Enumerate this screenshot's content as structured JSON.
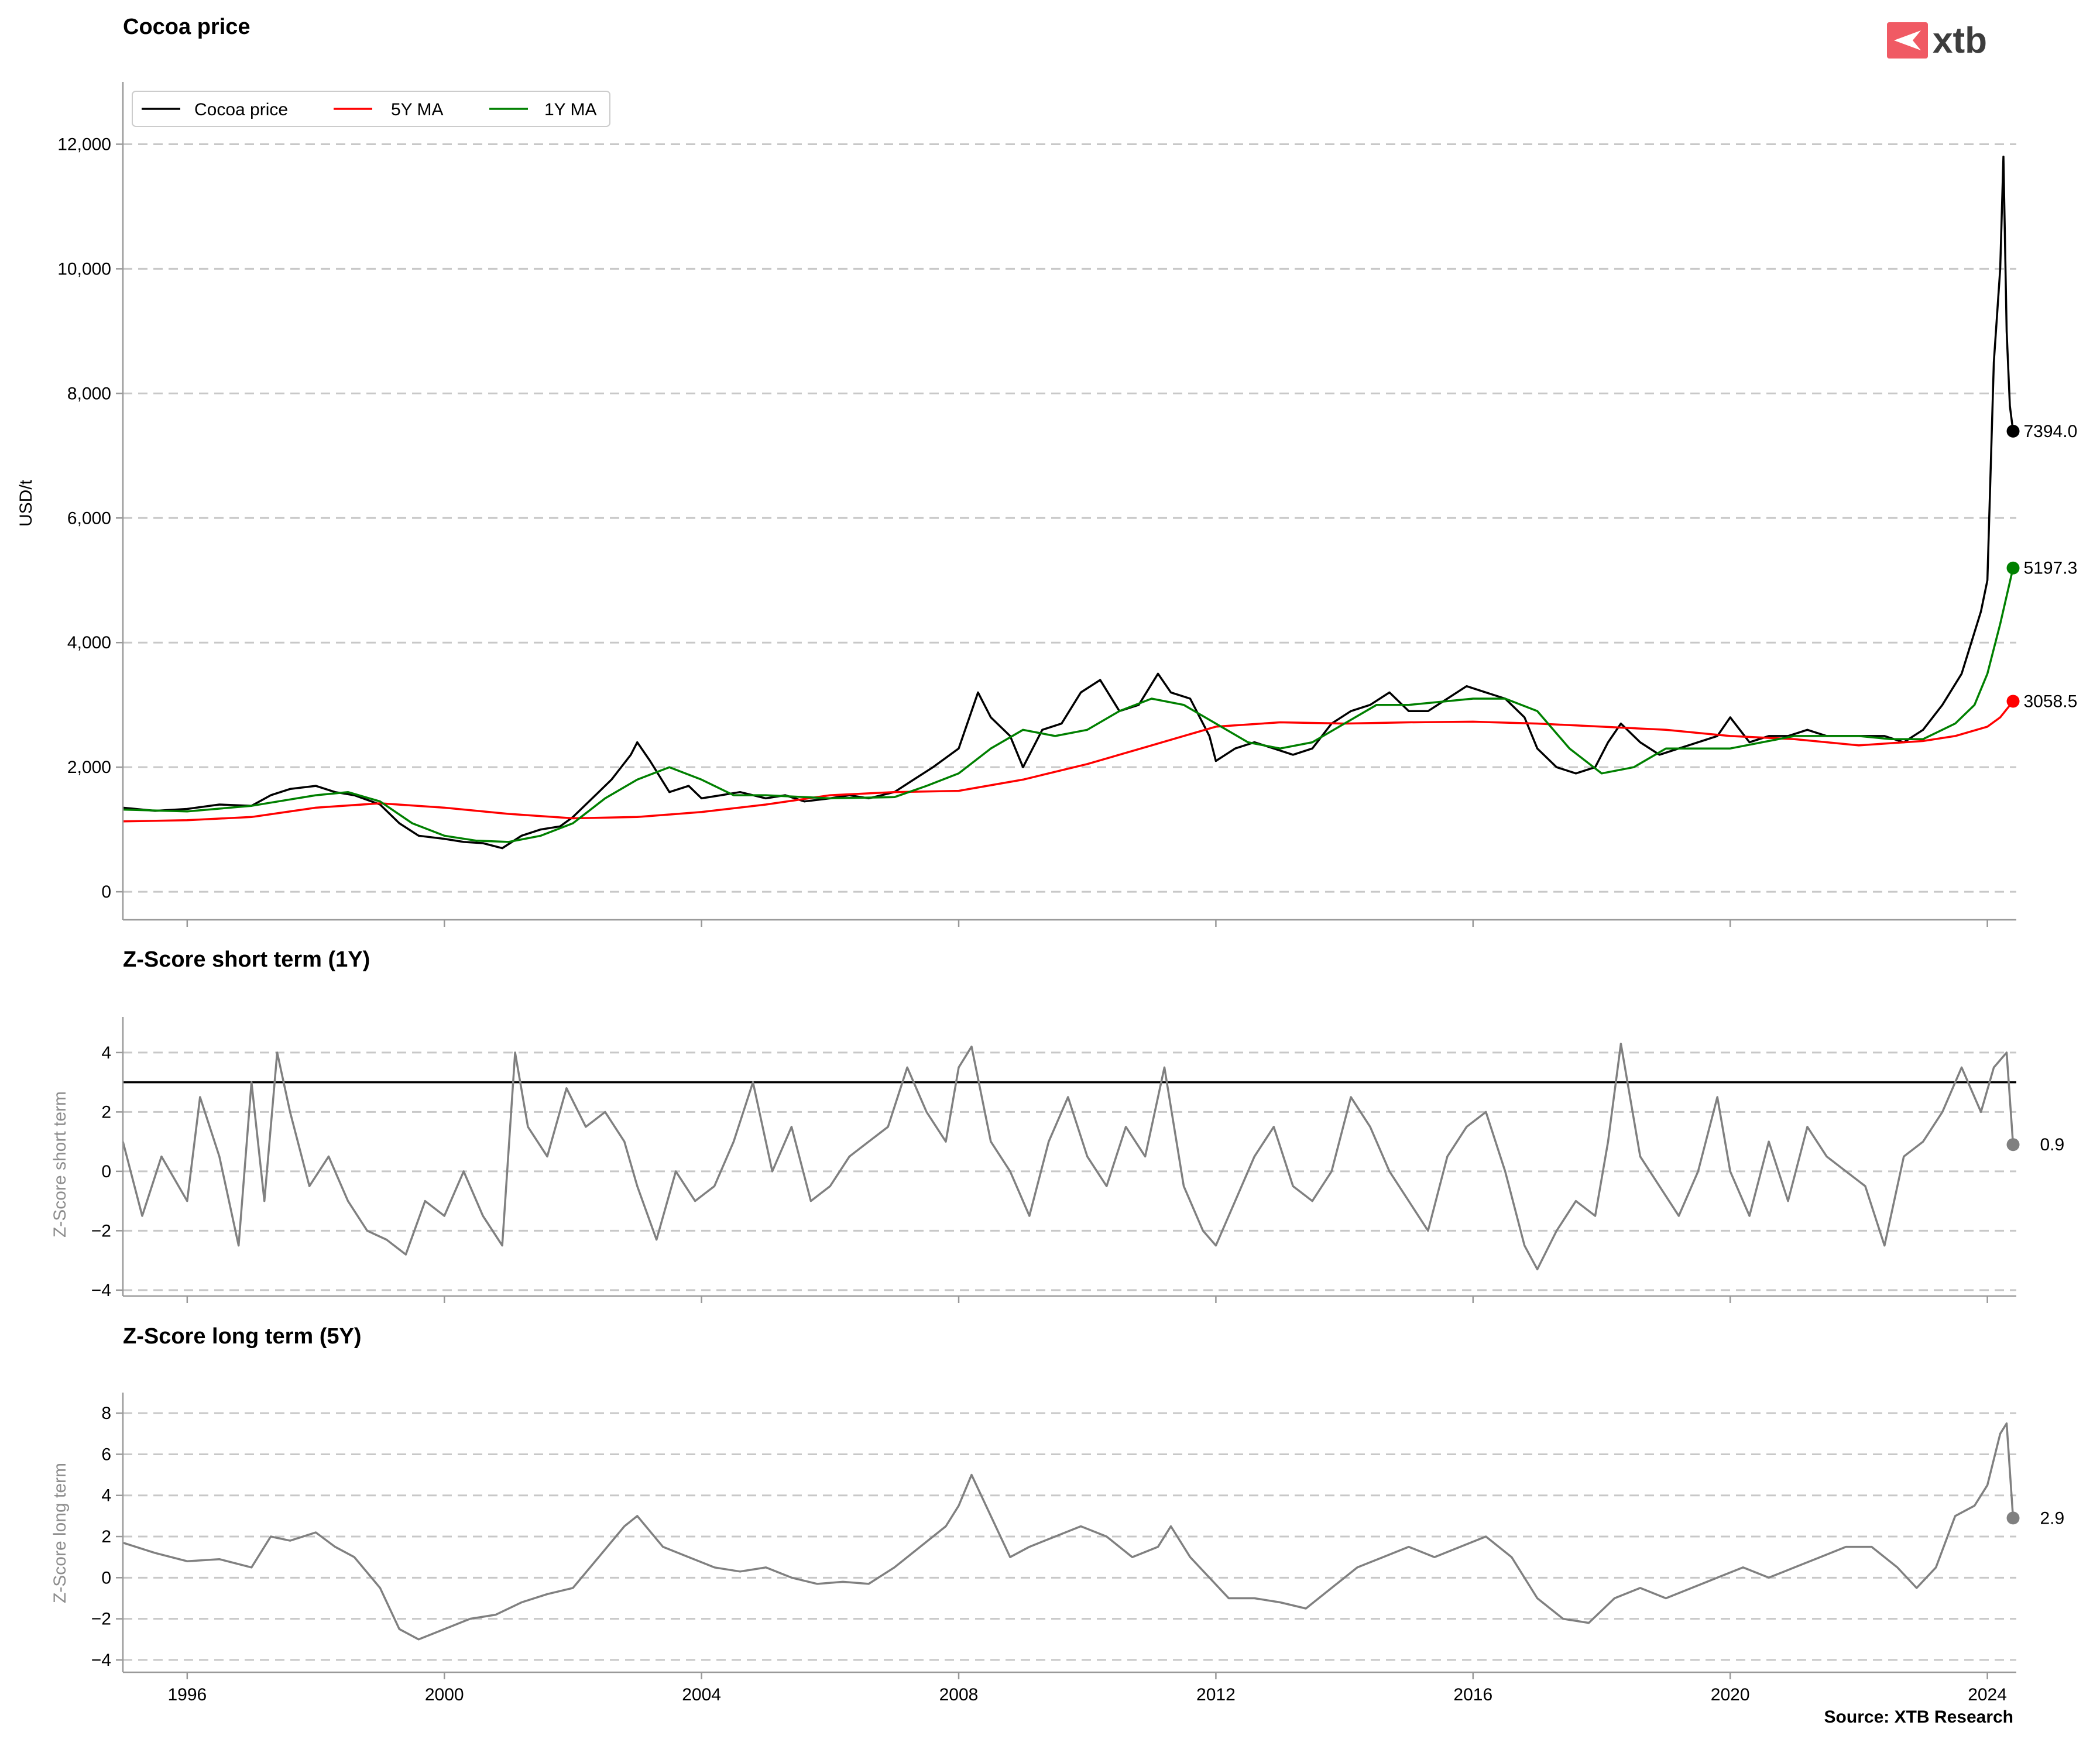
{
  "brand": {
    "logo_text": "xtb",
    "logo_color": "#f05a64"
  },
  "source": "Source: XTB Research",
  "x_ticks": [
    "1996",
    "2000",
    "2004",
    "2008",
    "2012",
    "2016",
    "2020",
    "2024"
  ],
  "chart_data": [
    {
      "type": "line",
      "title": "Cocoa price",
      "ylabel": "USD/t",
      "xlim": [
        1995.0,
        2024.45
      ],
      "ylim": [
        -450,
        13000
      ],
      "y_ticks": [
        0,
        2000,
        4000,
        6000,
        8000,
        10000,
        12000
      ],
      "y_tick_labels": [
        "0",
        "2,000",
        "4,000",
        "6,000",
        "8,000",
        "10,000",
        "12,000"
      ],
      "grid": true,
      "legend_position": "top-left",
      "series": [
        {
          "name": "Cocoa price",
          "color": "#000000",
          "x": [
            1995.0,
            1995.5,
            1996.0,
            1996.5,
            1997.0,
            1997.3,
            1997.6,
            1998.0,
            1998.3,
            1998.6,
            1999.0,
            1999.3,
            1999.6,
            2000.0,
            2000.3,
            2000.6,
            2000.9,
            2001.2,
            2001.5,
            2001.8,
            2002.0,
            2002.3,
            2002.6,
            2002.9,
            2003.0,
            2003.2,
            2003.5,
            2003.8,
            2004.0,
            2004.3,
            2004.6,
            2005.0,
            2005.3,
            2005.6,
            2006.0,
            2006.3,
            2006.6,
            2007.0,
            2007.3,
            2007.6,
            2008.0,
            2008.3,
            2008.5,
            2008.8,
            2009.0,
            2009.3,
            2009.6,
            2009.9,
            2010.2,
            2010.5,
            2010.8,
            2011.1,
            2011.3,
            2011.6,
            2011.9,
            2012.0,
            2012.3,
            2012.6,
            2012.9,
            2013.2,
            2013.5,
            2013.8,
            2014.1,
            2014.4,
            2014.7,
            2015.0,
            2015.3,
            2015.6,
            2015.9,
            2016.2,
            2016.5,
            2016.8,
            2017.0,
            2017.3,
            2017.6,
            2017.9,
            2018.1,
            2018.3,
            2018.6,
            2018.9,
            2019.2,
            2019.5,
            2019.8,
            2020.0,
            2020.3,
            2020.6,
            2020.9,
            2021.2,
            2021.5,
            2021.8,
            2022.1,
            2022.4,
            2022.7,
            2023.0,
            2023.3,
            2023.6,
            2023.9,
            2024.0,
            2024.1,
            2024.2,
            2024.25,
            2024.3,
            2024.35,
            2024.4
          ],
          "values": [
            1350,
            1300,
            1330,
            1400,
            1380,
            1550,
            1650,
            1700,
            1600,
            1550,
            1400,
            1100,
            900,
            850,
            800,
            780,
            700,
            900,
            1000,
            1050,
            1200,
            1500,
            1800,
            2200,
            2400,
            2100,
            1600,
            1700,
            1500,
            1550,
            1600,
            1500,
            1550,
            1450,
            1500,
            1550,
            1500,
            1600,
            1800,
            2000,
            2300,
            3200,
            2800,
            2500,
            2000,
            2600,
            2700,
            3200,
            3400,
            2900,
            3000,
            3500,
            3200,
            3100,
            2500,
            2100,
            2300,
            2400,
            2300,
            2200,
            2300,
            2700,
            2900,
            3000,
            3200,
            2900,
            2900,
            3100,
            3300,
            3200,
            3100,
            2800,
            2300,
            2000,
            1900,
            2000,
            2400,
            2700,
            2400,
            2200,
            2300,
            2400,
            2500,
            2800,
            2400,
            2500,
            2500,
            2600,
            2500,
            2500,
            2500,
            2500,
            2400,
            2600,
            3000,
            3500,
            4500,
            5000,
            8500,
            10000,
            11800,
            9000,
            7800,
            7394
          ],
          "end_label": "7394.0"
        },
        {
          "name": "5Y MA",
          "color": "#ff0000",
          "x": [
            1995.0,
            1996.0,
            1997.0,
            1998.0,
            1999.0,
            2000.0,
            2001.0,
            2002.0,
            2003.0,
            2004.0,
            2005.0,
            2006.0,
            2007.0,
            2008.0,
            2009.0,
            2010.0,
            2011.0,
            2012.0,
            2013.0,
            2014.0,
            2015.0,
            2016.0,
            2017.0,
            2018.0,
            2019.0,
            2020.0,
            2021.0,
            2022.0,
            2023.0,
            2023.5,
            2024.0,
            2024.2,
            2024.4
          ],
          "values": [
            1130,
            1150,
            1200,
            1350,
            1420,
            1350,
            1250,
            1180,
            1200,
            1280,
            1400,
            1550,
            1600,
            1620,
            1800,
            2050,
            2350,
            2650,
            2720,
            2700,
            2720,
            2730,
            2700,
            2650,
            2600,
            2500,
            2450,
            2350,
            2420,
            2500,
            2650,
            2800,
            3058.5
          ],
          "end_label": "3058.5"
        },
        {
          "name": "1Y MA",
          "color": "#008000",
          "x": [
            1995.0,
            1996.0,
            1997.0,
            1998.0,
            1998.5,
            1999.0,
            1999.5,
            2000.0,
            2000.5,
            2001.0,
            2001.5,
            2002.0,
            2002.5,
            2003.0,
            2003.5,
            2004.0,
            2004.5,
            2005.0,
            2006.0,
            2007.0,
            2007.5,
            2008.0,
            2008.5,
            2009.0,
            2009.5,
            2010.0,
            2010.5,
            2011.0,
            2011.5,
            2012.0,
            2012.5,
            2013.0,
            2013.5,
            2014.0,
            2014.5,
            2015.0,
            2015.5,
            2016.0,
            2016.5,
            2017.0,
            2017.5,
            2018.0,
            2018.5,
            2019.0,
            2019.5,
            2020.0,
            2021.0,
            2022.0,
            2022.5,
            2023.0,
            2023.5,
            2023.8,
            2024.0,
            2024.2,
            2024.4
          ],
          "values": [
            1320,
            1290,
            1380,
            1550,
            1600,
            1450,
            1100,
            900,
            820,
            800,
            900,
            1100,
            1500,
            1800,
            2000,
            1800,
            1550,
            1550,
            1500,
            1520,
            1700,
            1900,
            2300,
            2600,
            2500,
            2600,
            2900,
            3100,
            3000,
            2700,
            2400,
            2300,
            2400,
            2700,
            3000,
            3000,
            3050,
            3100,
            3100,
            2900,
            2300,
            1900,
            2000,
            2300,
            2300,
            2300,
            2500,
            2500,
            2450,
            2450,
            2700,
            3000,
            3500,
            4300,
            5197.3
          ],
          "end_label": "5197.3"
        }
      ]
    },
    {
      "type": "line",
      "title": "Z-Score short term (1Y)",
      "ylabel": "Z-Score short term",
      "xlim": [
        1995.0,
        2024.45
      ],
      "ylim": [
        -4.2,
        5.2
      ],
      "y_ticks": [
        -4,
        -2,
        0,
        2,
        4
      ],
      "y_tick_labels": [
        "−4",
        "−2",
        "0",
        "2",
        "4"
      ],
      "threshold": 3,
      "threshold_color": "#000000",
      "grid": true,
      "series": [
        {
          "name": "",
          "color": "#808080",
          "x": [
            1995.0,
            1995.3,
            1995.6,
            1996.0,
            1996.2,
            1996.5,
            1996.8,
            1997.0,
            1997.2,
            1997.4,
            1997.6,
            1997.9,
            1998.2,
            1998.5,
            1998.8,
            1999.1,
            1999.4,
            1999.7,
            2000.0,
            2000.3,
            2000.6,
            2000.9,
            2001.1,
            2001.3,
            2001.6,
            2001.9,
            2002.2,
            2002.5,
            2002.8,
            2003.0,
            2003.3,
            2003.6,
            2003.9,
            2004.2,
            2004.5,
            2004.8,
            2005.1,
            2005.4,
            2005.7,
            2006.0,
            2006.3,
            2006.6,
            2006.9,
            2007.2,
            2007.5,
            2007.8,
            2008.0,
            2008.2,
            2008.5,
            2008.8,
            2009.1,
            2009.4,
            2009.7,
            2010.0,
            2010.3,
            2010.6,
            2010.9,
            2011.2,
            2011.5,
            2011.8,
            2012.0,
            2012.3,
            2012.6,
            2012.9,
            2013.2,
            2013.5,
            2013.8,
            2014.1,
            2014.4,
            2014.7,
            2015.0,
            2015.3,
            2015.6,
            2015.9,
            2016.2,
            2016.5,
            2016.8,
            2017.0,
            2017.3,
            2017.6,
            2017.9,
            2018.1,
            2018.3,
            2018.6,
            2018.9,
            2019.2,
            2019.5,
            2019.8,
            2020.0,
            2020.3,
            2020.6,
            2020.9,
            2021.2,
            2021.5,
            2021.8,
            2022.1,
            2022.4,
            2022.7,
            2023.0,
            2023.3,
            2023.6,
            2023.9,
            2024.1,
            2024.3,
            2024.4
          ],
          "values": [
            1.0,
            -1.5,
            0.5,
            -1.0,
            2.5,
            0.5,
            -2.5,
            3.0,
            -1.0,
            4.0,
            2.0,
            -0.5,
            0.5,
            -1.0,
            -2.0,
            -2.3,
            -2.8,
            -1.0,
            -1.5,
            0.0,
            -1.5,
            -2.5,
            4.0,
            1.5,
            0.5,
            2.8,
            1.5,
            2.0,
            1.0,
            -0.5,
            -2.3,
            0.0,
            -1.0,
            -0.5,
            1.0,
            3.0,
            0.0,
            1.5,
            -1.0,
            -0.5,
            0.5,
            1.0,
            1.5,
            3.5,
            2.0,
            1.0,
            3.5,
            4.2,
            1.0,
            0.0,
            -1.5,
            1.0,
            2.5,
            0.5,
            -0.5,
            1.5,
            0.5,
            3.5,
            -0.5,
            -2.0,
            -2.5,
            -1.0,
            0.5,
            1.5,
            -0.5,
            -1.0,
            0.0,
            2.5,
            1.5,
            0.0,
            -1.0,
            -2.0,
            0.5,
            1.5,
            2.0,
            0.0,
            -2.5,
            -3.3,
            -2.0,
            -1.0,
            -1.5,
            1.0,
            4.3,
            0.5,
            -0.5,
            -1.5,
            0.0,
            2.5,
            0.0,
            -1.5,
            1.0,
            -1.0,
            1.5,
            0.5,
            0.0,
            -0.5,
            -2.5,
            0.5,
            1.0,
            2.0,
            3.5,
            2.0,
            3.5,
            4.0,
            0.9
          ],
          "end_label": "0.9"
        }
      ]
    },
    {
      "type": "line",
      "title": "Z-Score long term (5Y)",
      "ylabel": "Z-Score long term",
      "xlim": [
        1995.0,
        2024.45
      ],
      "ylim": [
        -4.6,
        9.0
      ],
      "y_ticks": [
        -4,
        -2,
        0,
        2,
        4,
        6,
        8
      ],
      "y_tick_labels": [
        "−4",
        "−2",
        "0",
        "2",
        "4",
        "6",
        "8"
      ],
      "grid": true,
      "series": [
        {
          "name": "",
          "color": "#808080",
          "x": [
            1995.0,
            1995.5,
            1996.0,
            1996.5,
            1997.0,
            1997.3,
            1997.6,
            1998.0,
            1998.3,
            1998.6,
            1999.0,
            1999.3,
            1999.6,
            2000.0,
            2000.4,
            2000.8,
            2001.2,
            2001.6,
            2002.0,
            2002.4,
            2002.8,
            2003.0,
            2003.4,
            2003.8,
            2004.2,
            2004.6,
            2005.0,
            2005.4,
            2005.8,
            2006.2,
            2006.6,
            2007.0,
            2007.4,
            2007.8,
            2008.0,
            2008.2,
            2008.5,
            2008.8,
            2009.1,
            2009.5,
            2009.9,
            2010.3,
            2010.7,
            2011.1,
            2011.3,
            2011.6,
            2011.9,
            2012.2,
            2012.6,
            2013.0,
            2013.4,
            2013.8,
            2014.2,
            2014.6,
            2015.0,
            2015.4,
            2015.8,
            2016.2,
            2016.6,
            2017.0,
            2017.4,
            2017.8,
            2018.2,
            2018.6,
            2019.0,
            2019.4,
            2019.8,
            2020.2,
            2020.6,
            2021.0,
            2021.4,
            2021.8,
            2022.2,
            2022.6,
            2022.9,
            2023.2,
            2023.5,
            2023.8,
            2024.0,
            2024.2,
            2024.3,
            2024.4
          ],
          "values": [
            1.7,
            1.2,
            0.8,
            0.9,
            0.5,
            2.0,
            1.8,
            2.2,
            1.5,
            1.0,
            -0.5,
            -2.5,
            -3.0,
            -2.5,
            -2.0,
            -1.8,
            -1.2,
            -0.8,
            -0.5,
            1.0,
            2.5,
            3.0,
            1.5,
            1.0,
            0.5,
            0.3,
            0.5,
            0.0,
            -0.3,
            -0.2,
            -0.3,
            0.5,
            1.5,
            2.5,
            3.5,
            5.0,
            3.0,
            1.0,
            1.5,
            2.0,
            2.5,
            2.0,
            1.0,
            1.5,
            2.5,
            1.0,
            0.0,
            -1.0,
            -1.0,
            -1.2,
            -1.5,
            -0.5,
            0.5,
            1.0,
            1.5,
            1.0,
            1.5,
            2.0,
            1.0,
            -1.0,
            -2.0,
            -2.2,
            -1.0,
            -0.5,
            -1.0,
            -0.5,
            0.0,
            0.5,
            0.0,
            0.5,
            1.0,
            1.5,
            1.5,
            0.5,
            -0.5,
            0.5,
            3.0,
            3.5,
            4.5,
            7.0,
            7.5,
            2.9
          ],
          "end_label": "2.9"
        }
      ]
    }
  ]
}
